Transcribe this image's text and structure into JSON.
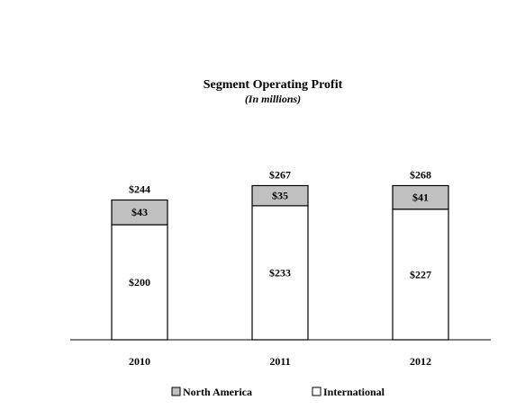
{
  "chart_data": {
    "type": "bar",
    "stacked": true,
    "title": "Segment Operating Profit",
    "subtitle": "(In millions)",
    "categories": [
      "2010",
      "2011",
      "2012"
    ],
    "series": [
      {
        "name": "International",
        "values": [
          200,
          233,
          227
        ],
        "labels": [
          "$200",
          "$233",
          "$227"
        ],
        "color": "#ffffff"
      },
      {
        "name": "North America",
        "values": [
          43,
          35,
          41
        ],
        "labels": [
          "$43",
          "$35",
          "$41"
        ],
        "color": "#c0c0c0"
      }
    ],
    "totals": [
      244,
      267,
      268
    ],
    "total_labels": [
      "$244",
      "$267",
      "$268"
    ],
    "ylim": [
      0,
      300
    ],
    "grid": false,
    "legend_position": "bottom-center",
    "legend": [
      {
        "name": "North America",
        "color": "#c0c0c0"
      },
      {
        "name": "International",
        "color": "#ffffff"
      }
    ]
  }
}
